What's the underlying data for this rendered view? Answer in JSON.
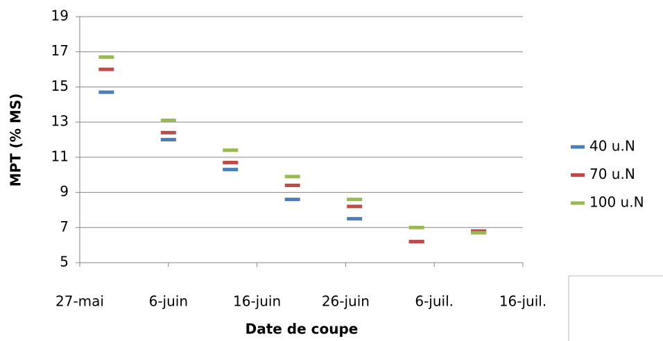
{
  "chart_data": {
    "type": "scatter",
    "xlabel": "Date de coupe",
    "ylabel": "MPT (% MS)",
    "x": [
      3,
      10,
      17,
      24,
      31,
      38,
      45
    ],
    "series": [
      {
        "name": "40 u.N",
        "color": "#4a7ebb",
        "values": [
          14.7,
          12.0,
          10.3,
          8.6,
          7.5,
          6.2,
          6.8
        ]
      },
      {
        "name": "70 u.N",
        "color": "#be4b48",
        "values": [
          16.0,
          12.4,
          10.7,
          9.4,
          8.2,
          6.2,
          6.8
        ]
      },
      {
        "name": "100 u.N",
        "color": "#98b954",
        "values": [
          16.7,
          13.1,
          11.4,
          9.9,
          8.6,
          7.0,
          6.7
        ]
      }
    ],
    "xlim": [
      0,
      50
    ],
    "xticks": [
      {
        "value": 0,
        "label": "27-mai"
      },
      {
        "value": 10,
        "label": "6-juin"
      },
      {
        "value": 20,
        "label": "16-juin"
      },
      {
        "value": 30,
        "label": "26-juin"
      },
      {
        "value": 40,
        "label": "6-juil."
      },
      {
        "value": 50,
        "label": "16-juil."
      }
    ],
    "ylim": [
      5,
      19
    ],
    "yticks": [
      5,
      7,
      9,
      11,
      13,
      15,
      17,
      19
    ],
    "grid": true,
    "legend": "right"
  }
}
